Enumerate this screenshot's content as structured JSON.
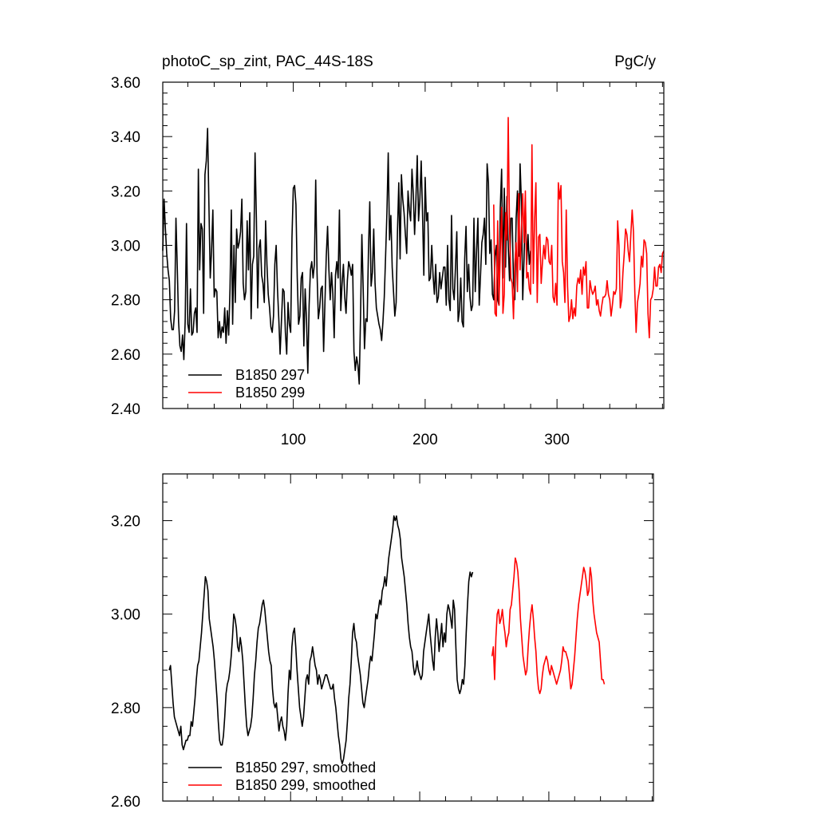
{
  "chart_data": [
    {
      "type": "line",
      "title": "photoC_sp_zint, PAC_44S-18S",
      "units": "PgC/y",
      "xlim": [
        1,
        381
      ],
      "ylim": [
        2.4,
        3.6
      ],
      "xticks": [
        100,
        200,
        300
      ],
      "xtick_labels": [
        "100",
        "200",
        "300"
      ],
      "yticks": [
        2.4,
        2.6,
        2.8,
        3.0,
        3.2,
        3.4,
        3.6
      ],
      "ytick_labels": [
        "2.40",
        "2.60",
        "2.80",
        "3.00",
        "3.20",
        "3.40",
        "3.60"
      ],
      "legend_position": "bottom-left",
      "series": [
        {
          "name": "B1850 297",
          "color": "#000000",
          "x_start": 1,
          "values": [
            2.98,
            3.17,
            3.06,
            2.97,
            2.91,
            2.87,
            2.73,
            2.69,
            2.69,
            2.76,
            3.1,
            2.92,
            2.72,
            2.63,
            2.61,
            2.67,
            2.58,
            2.72,
            3.08,
            2.71,
            2.68,
            2.84,
            2.67,
            2.68,
            2.75,
            2.77,
            2.68,
            3.28,
            2.91,
            3.08,
            3.06,
            2.75,
            3.26,
            3.31,
            3.43,
            3.15,
            2.88,
            2.98,
            3.13,
            2.81,
            2.84,
            2.83,
            2.66,
            2.72,
            2.66,
            2.7,
            2.68,
            2.77,
            2.64,
            2.76,
            2.67,
            2.84,
            3.13,
            2.71,
            3.0,
            2.79,
            3.06,
            2.99,
            3.01,
            3.05,
            3.17,
            2.86,
            2.8,
            2.83,
            3.09,
            2.91,
            3.12,
            2.73,
            2.93,
            2.96,
            3.34,
            3.1,
            2.77,
            2.99,
            3.02,
            2.89,
            2.86,
            2.79,
            3.09,
            2.93,
            2.82,
            2.77,
            2.7,
            2.68,
            2.74,
            2.93,
            3.0,
            2.84,
            2.73,
            2.6,
            2.72,
            2.84,
            2.83,
            2.68,
            2.6,
            2.79,
            2.71,
            2.68,
            3.03,
            3.21,
            3.22,
            3.15,
            2.88,
            2.71,
            2.74,
            2.88,
            2.9,
            2.63,
            2.84,
            2.73,
            2.53,
            2.78,
            2.91,
            2.94,
            2.88,
            2.93,
            3.24,
            2.9,
            2.73,
            2.77,
            2.84,
            2.85,
            2.61,
            2.79,
            2.96,
            3.07,
            2.91,
            2.8,
            2.9,
            2.82,
            2.66,
            2.89,
            2.94,
            2.88,
            3.13,
            2.76,
            2.86,
            2.93,
            2.81,
            2.75,
            2.87,
            2.94,
            2.92,
            2.89,
            2.93,
            2.61,
            2.54,
            2.59,
            2.56,
            2.49,
            2.74,
            3.04,
            2.84,
            2.62,
            2.73,
            2.72,
            2.98,
            3.16,
            2.85,
            2.9,
            3.06,
            2.86,
            2.77,
            2.74,
            2.71,
            2.69,
            2.65,
            2.72,
            2.81,
            2.96,
            3.12,
            3.34,
            3.02,
            3.11,
            2.92,
            2.83,
            2.74,
            2.79,
            3.05,
            3.23,
            2.95,
            3.26,
            3.17,
            3.12,
            3.04,
            2.97,
            3.2,
            3.13,
            3.09,
            3.28,
            3.19,
            3.04,
            3.17,
            3.33,
            3.09,
            3.17,
            3.31,
            3.12,
            2.89,
            3.25,
            3.09,
            3.12,
            2.87,
            2.88,
            3.0,
            2.89,
            2.82,
            2.93,
            2.79,
            2.81,
            2.9,
            2.84,
            2.88,
            2.92,
            2.92,
            2.78,
            3.0,
            2.8,
            2.76,
            3.11,
            2.84,
            2.8,
            2.92,
            3.05,
            2.72,
            2.76,
            2.88,
            2.72,
            2.7,
            2.95,
            3.07,
            2.83,
            2.93,
            2.81,
            2.76,
            2.78,
            3.1,
            2.83,
            2.98,
            3.1,
            2.78,
            2.89,
            3.01,
            3.04,
            3.1,
            2.93,
            3.3,
            3.23,
            2.97,
            3.02,
            2.82,
            2.8,
            2.96,
            3.0,
            2.8,
            2.78,
            3.14,
            3.28,
            2.88,
            3.21,
            2.92,
            3.18,
            3.0,
            2.87,
            3.1,
            3.1,
            2.86,
            2.8,
            3.1,
            3.2,
            2.96,
            3.3,
            3.16,
            2.8,
            2.95,
            3.16,
            2.93,
            3.04,
            2.93,
            2.98
          ]
        },
        {
          "name": "B1850 299",
          "color": "#ff0000",
          "x_start": 252,
          "values": [
            3.15,
            2.75,
            2.74,
            3.09,
            2.78,
            2.98,
            3.14,
            2.75,
            2.82,
            3.12,
            3.02,
            3.47,
            3.06,
            2.88,
            2.86,
            2.73,
            2.93,
            3.01,
            2.83,
            3.19,
            2.91,
            3.06,
            3.19,
            3.01,
            3.2,
            2.88,
            2.9,
            2.84,
            2.82,
            3.37,
            2.86,
            3.09,
            3.23,
            2.79,
            3.03,
            3.04,
            2.86,
            2.94,
            3.0,
            2.95,
            3.03,
            3.02,
            2.94,
            2.93,
            3.0,
            2.81,
            2.79,
            2.86,
            2.78,
            3.23,
            3.17,
            3.22,
            2.94,
            2.9,
            2.79,
            3.13,
            2.85,
            2.72,
            2.74,
            2.8,
            2.73,
            2.77,
            2.74,
            2.85,
            2.88,
            2.86,
            2.91,
            2.82,
            2.92,
            2.89,
            2.94,
            2.77,
            2.77,
            2.87,
            2.84,
            2.82,
            2.83,
            2.85,
            2.78,
            2.8,
            2.76,
            2.74,
            2.78,
            2.81,
            2.81,
            2.82,
            2.87,
            2.82,
            2.8,
            2.74,
            2.78,
            2.83,
            2.82,
            2.84,
            3.09,
            3.0,
            2.77,
            2.8,
            2.9,
            2.97,
            3.06,
            3.04,
            2.98,
            2.94,
            3.04,
            3.13,
            3.05,
            2.83,
            2.68,
            2.79,
            2.82,
            2.86,
            2.96,
            2.92,
            3.02,
            3.01,
            2.97,
            2.75,
            2.66,
            2.8,
            2.81,
            2.84,
            2.92,
            2.85,
            2.85,
            2.92,
            2.93,
            2.9,
            2.97,
            2.98
          ]
        }
      ]
    },
    {
      "type": "line",
      "title": "",
      "xlim": [
        1,
        381
      ],
      "ylim": [
        2.6,
        3.3
      ],
      "yticks": [
        2.6,
        2.8,
        3.0,
        3.2
      ],
      "ytick_labels": [
        "2.60",
        "2.80",
        "3.00",
        "3.20"
      ],
      "legend_position": "bottom-left",
      "series": [
        {
          "name": "B1850 297, smoothed",
          "color": "#000000",
          "x_start": 6,
          "values": [
            2.88,
            2.89,
            2.85,
            2.81,
            2.78,
            2.77,
            2.76,
            2.75,
            2.74,
            2.76,
            2.72,
            2.71,
            2.72,
            2.73,
            2.73,
            2.74,
            2.74,
            2.77,
            2.76,
            2.79,
            2.82,
            2.86,
            2.89,
            2.9,
            2.93,
            2.96,
            3.0,
            3.04,
            3.08,
            3.07,
            3.05,
            2.99,
            2.97,
            2.95,
            2.93,
            2.9,
            2.86,
            2.82,
            2.77,
            2.73,
            2.72,
            2.72,
            2.74,
            2.78,
            2.83,
            2.85,
            2.86,
            2.88,
            2.91,
            2.95,
            3.0,
            2.99,
            2.97,
            2.93,
            2.92,
            2.95,
            2.93,
            2.9,
            2.85,
            2.8,
            2.76,
            2.74,
            2.75,
            2.76,
            2.78,
            2.82,
            2.87,
            2.9,
            2.94,
            2.97,
            2.98,
            3.0,
            3.02,
            3.03,
            3.01,
            2.98,
            2.95,
            2.92,
            2.9,
            2.89,
            2.84,
            2.81,
            2.8,
            2.81,
            2.78,
            2.75,
            2.77,
            2.78,
            2.76,
            2.75,
            2.73,
            2.76,
            2.83,
            2.88,
            2.86,
            2.93,
            2.96,
            2.97,
            2.93,
            2.88,
            2.84,
            2.8,
            2.78,
            2.76,
            2.78,
            2.82,
            2.86,
            2.87,
            2.85,
            2.9,
            2.91,
            2.93,
            2.91,
            2.89,
            2.88,
            2.85,
            2.87,
            2.86,
            2.84,
            2.85,
            2.86,
            2.87,
            2.87,
            2.86,
            2.85,
            2.84,
            2.84,
            2.85,
            2.82,
            2.8,
            2.77,
            2.74,
            2.72,
            2.69,
            2.68,
            2.69,
            2.71,
            2.73,
            2.77,
            2.82,
            2.85,
            2.9,
            2.96,
            2.98,
            2.95,
            2.94,
            2.91,
            2.89,
            2.87,
            2.84,
            2.81,
            2.8,
            2.82,
            2.84,
            2.86,
            2.89,
            2.91,
            2.9,
            2.93,
            2.96,
            3.0,
            2.99,
            3.01,
            3.03,
            3.02,
            3.05,
            3.06,
            3.08,
            3.06,
            3.09,
            3.12,
            3.14,
            3.16,
            3.18,
            3.21,
            3.2,
            3.21,
            3.19,
            3.18,
            3.16,
            3.12,
            3.1,
            3.08,
            3.05,
            3.02,
            2.98,
            2.95,
            2.93,
            2.92,
            2.89,
            2.87,
            2.88,
            2.9,
            2.88,
            2.87,
            2.86,
            2.87,
            2.92,
            2.94,
            2.96,
            2.98,
            3.0,
            2.96,
            2.93,
            2.9,
            2.88,
            2.95,
            2.99,
            2.96,
            2.92,
            2.95,
            2.98,
            2.93,
            2.96,
            2.94,
            3.0,
            3.02,
            3.01,
            2.99,
            2.97,
            3.03,
            3.01,
            2.93,
            2.86,
            2.84,
            2.83,
            2.84,
            2.86,
            2.85,
            2.89,
            2.96,
            3.02,
            3.07,
            3.09,
            3.08,
            3.09
          ]
        },
        {
          "name": "B1850 299, smoothed",
          "color": "#ff0000",
          "x_start": 256,
          "values": [
            2.91,
            2.93,
            2.86,
            2.95,
            3.0,
            3.01,
            2.98,
            2.99,
            3.01,
            2.98,
            2.96,
            2.93,
            2.95,
            2.96,
            3.01,
            3.02,
            3.05,
            3.08,
            3.12,
            3.11,
            3.09,
            3.05,
            2.99,
            2.95,
            2.91,
            2.89,
            2.87,
            2.88,
            2.93,
            2.97,
            3.0,
            3.02,
            2.99,
            2.95,
            2.92,
            2.87,
            2.84,
            2.83,
            2.84,
            2.87,
            2.89,
            2.9,
            2.91,
            2.9,
            2.88,
            2.87,
            2.89,
            2.88,
            2.87,
            2.86,
            2.85,
            2.86,
            2.87,
            2.88,
            2.9,
            2.93,
            2.92,
            2.92,
            2.91,
            2.9,
            2.87,
            2.84,
            2.85,
            2.88,
            2.91,
            2.95,
            2.99,
            3.02,
            3.04,
            3.06,
            3.08,
            3.1,
            3.09,
            3.07,
            3.04,
            3.05,
            3.1,
            3.08,
            3.03,
            3.0,
            2.98,
            2.96,
            2.95,
            2.94,
            2.9,
            2.86,
            2.86,
            2.85
          ]
        }
      ]
    }
  ]
}
